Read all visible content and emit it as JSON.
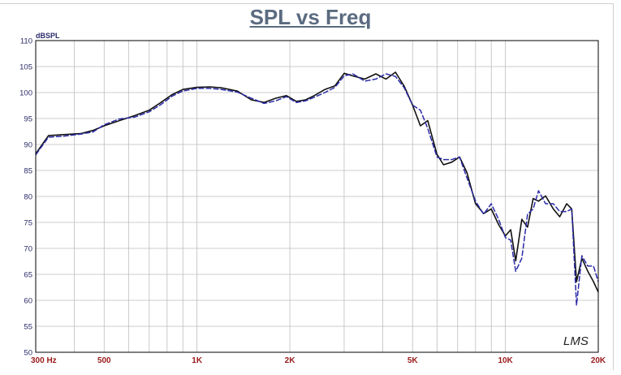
{
  "chart_data": {
    "type": "line",
    "title": "SPL vs Freq",
    "ylabel": "dBSPL",
    "xscale": "log",
    "xlim": [
      300,
      20000
    ],
    "ylim": [
      50,
      110
    ],
    "grid": true,
    "yticks": [
      50,
      55,
      60,
      65,
      70,
      75,
      80,
      85,
      90,
      95,
      100,
      105,
      110
    ],
    "xtick_labels": [
      {
        "value": 300,
        "label": "300  Hz"
      },
      {
        "value": 500,
        "label": "500"
      },
      {
        "value": 1000,
        "label": "1K"
      },
      {
        "value": 2000,
        "label": "2K"
      },
      {
        "value": 5000,
        "label": "5K"
      },
      {
        "value": 10000,
        "label": "10K"
      },
      {
        "value": 20000,
        "label": "20K"
      }
    ],
    "watermark": "LMS",
    "colors": {
      "series1": "#111111",
      "series2": "#2a2aa8",
      "grid": "#bdbdbd",
      "tick_x": "#9a1a1a",
      "tick_y": "#2a2a6a",
      "title": "#5b6b80"
    },
    "series": [
      {
        "color": "#111111",
        "dash": false,
        "x": [
          300,
          330,
          370,
          420,
          460,
          500,
          560,
          630,
          700,
          760,
          830,
          900,
          1000,
          1100,
          1200,
          1350,
          1500,
          1650,
          1800,
          1950,
          2100,
          2250,
          2400,
          2600,
          2800,
          3000,
          3200,
          3500,
          3800,
          4100,
          4400,
          4700,
          5000,
          5300,
          5600,
          6000,
          6300,
          6700,
          7100,
          7500,
          8000,
          8500,
          9000,
          9500,
          10000,
          10400,
          10800,
          11300,
          11800,
          12300,
          12800,
          13500,
          14300,
          15000,
          15800,
          16400,
          17000,
          17700,
          18500,
          19300,
          20000
        ],
        "y": [
          88.2,
          91.7,
          91.9,
          92.1,
          92.7,
          93.6,
          94.6,
          95.6,
          96.6,
          98.0,
          99.6,
          100.6,
          101.0,
          101.1,
          100.9,
          100.3,
          98.6,
          98.1,
          98.9,
          99.4,
          98.3,
          98.6,
          99.4,
          100.6,
          101.3,
          103.7,
          103.2,
          102.6,
          103.6,
          102.6,
          103.9,
          101.2,
          97.6,
          93.6,
          94.6,
          88.1,
          86.1,
          86.6,
          87.6,
          84.6,
          78.6,
          76.7,
          77.6,
          74.6,
          72.4,
          73.6,
          67.6,
          75.6,
          74.1,
          79.6,
          79.1,
          80.1,
          77.6,
          76.1,
          78.6,
          77.6,
          63.6,
          68.1,
          65.6,
          63.6,
          61.6
        ]
      },
      {
        "color": "#2a2aa8",
        "dash": true,
        "x": [
          300,
          330,
          370,
          420,
          460,
          500,
          560,
          630,
          700,
          760,
          830,
          900,
          1000,
          1100,
          1200,
          1350,
          1500,
          1650,
          1800,
          1950,
          2100,
          2250,
          2400,
          2600,
          2800,
          3000,
          3200,
          3500,
          3800,
          4100,
          4400,
          4700,
          5000,
          5300,
          5600,
          6000,
          6300,
          6700,
          7100,
          7500,
          8000,
          8500,
          9000,
          9500,
          10000,
          10400,
          10800,
          11300,
          11800,
          12300,
          12800,
          13500,
          14300,
          15000,
          15800,
          16400,
          17000,
          17700,
          18500,
          19300,
          20000
        ],
        "y": [
          88.0,
          91.4,
          91.6,
          92.0,
          92.4,
          93.8,
          94.9,
          95.3,
          96.3,
          97.6,
          99.3,
          100.3,
          100.8,
          100.8,
          100.6,
          100.1,
          98.9,
          97.9,
          98.4,
          99.2,
          98.1,
          98.4,
          99.1,
          100.0,
          101.0,
          103.2,
          103.6,
          102.2,
          102.6,
          103.6,
          103.1,
          100.9,
          97.6,
          96.6,
          93.1,
          87.6,
          87.1,
          87.1,
          87.6,
          83.6,
          79.1,
          76.6,
          78.6,
          75.6,
          72.1,
          71.6,
          65.6,
          68.1,
          76.6,
          77.6,
          81.1,
          78.6,
          78.6,
          77.1,
          77.1,
          77.6,
          59.1,
          68.6,
          66.6,
          66.6,
          63.6
        ]
      }
    ]
  }
}
